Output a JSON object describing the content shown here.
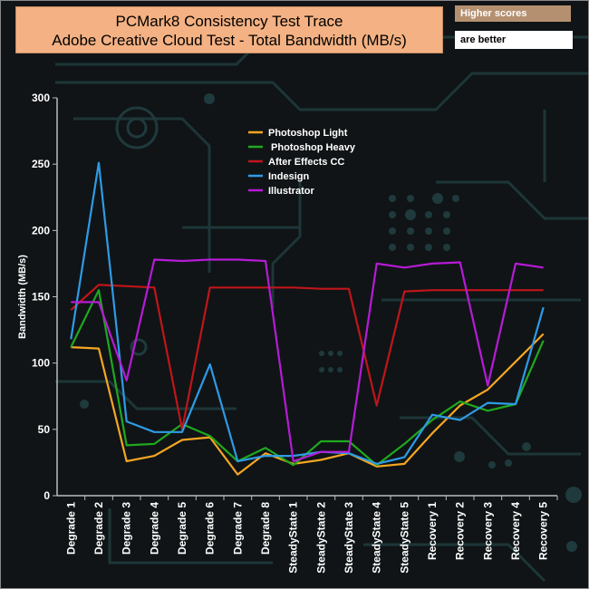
{
  "header": {
    "title_line1": "PCMark8 Consistency Test Trace",
    "title_line2": "Adobe Creative Cloud Test - Total Bandwidth (MB/s)"
  },
  "badges": {
    "top": "Higher scores",
    "bottom": "are better"
  },
  "chart_data": {
    "type": "line",
    "title": "PCMark8 Consistency Test Trace Adobe Creative Cloud Test - Total Bandwidth (MB/s)",
    "xlabel": "",
    "ylabel": "Bandwidth (MB/s)",
    "ylim": [
      0,
      300
    ],
    "yticks": [
      0,
      50,
      100,
      150,
      200,
      250,
      300
    ],
    "grid": false,
    "legend_position": "top-center",
    "categories": [
      "Degrade 1",
      "Degrade 2",
      "Degrade 3",
      "Degrade 4",
      "Degrade 5",
      "Degrade 6",
      "Degrade 7",
      "Degrade 8",
      "SteadyState 1",
      "SteadyState 2",
      "SteadyState 3",
      "SteadyState 4",
      "SteadyState 5",
      "Recovery 1",
      "Recovery 2",
      "Recovery 3",
      "Recovery 4",
      "Recovery 5"
    ],
    "series": [
      {
        "name": "Photoshop Light",
        "color": "#f5a623",
        "values": [
          112,
          111,
          26,
          30,
          42,
          44,
          16,
          32,
          24,
          27,
          32,
          22,
          24,
          47,
          68,
          80,
          101,
          122
        ]
      },
      {
        "name": " Photoshop Heavy",
        "color": "#1fa81f",
        "values": [
          112,
          155,
          38,
          39,
          54,
          45,
          26,
          36,
          23,
          41,
          41,
          23,
          39,
          57,
          71,
          64,
          69,
          117
        ]
      },
      {
        "name": "After Effects CC",
        "color": "#c0151b",
        "values": [
          140,
          159,
          158,
          157,
          50,
          157,
          157,
          157,
          157,
          156,
          156,
          68,
          154,
          155,
          155,
          155,
          155,
          155
        ]
      },
      {
        "name": "Indesign",
        "color": "#2e9be6",
        "values": [
          118,
          251,
          56,
          48,
          48,
          99,
          26,
          30,
          30,
          33,
          32,
          24,
          29,
          61,
          57,
          70,
          69,
          142
        ]
      },
      {
        "name": "Illustrator",
        "color": "#b61bd6",
        "values": [
          146,
          146,
          87,
          178,
          177,
          178,
          178,
          177,
          26,
          33,
          33,
          175,
          172,
          175,
          176,
          83,
          175,
          172
        ]
      }
    ]
  }
}
